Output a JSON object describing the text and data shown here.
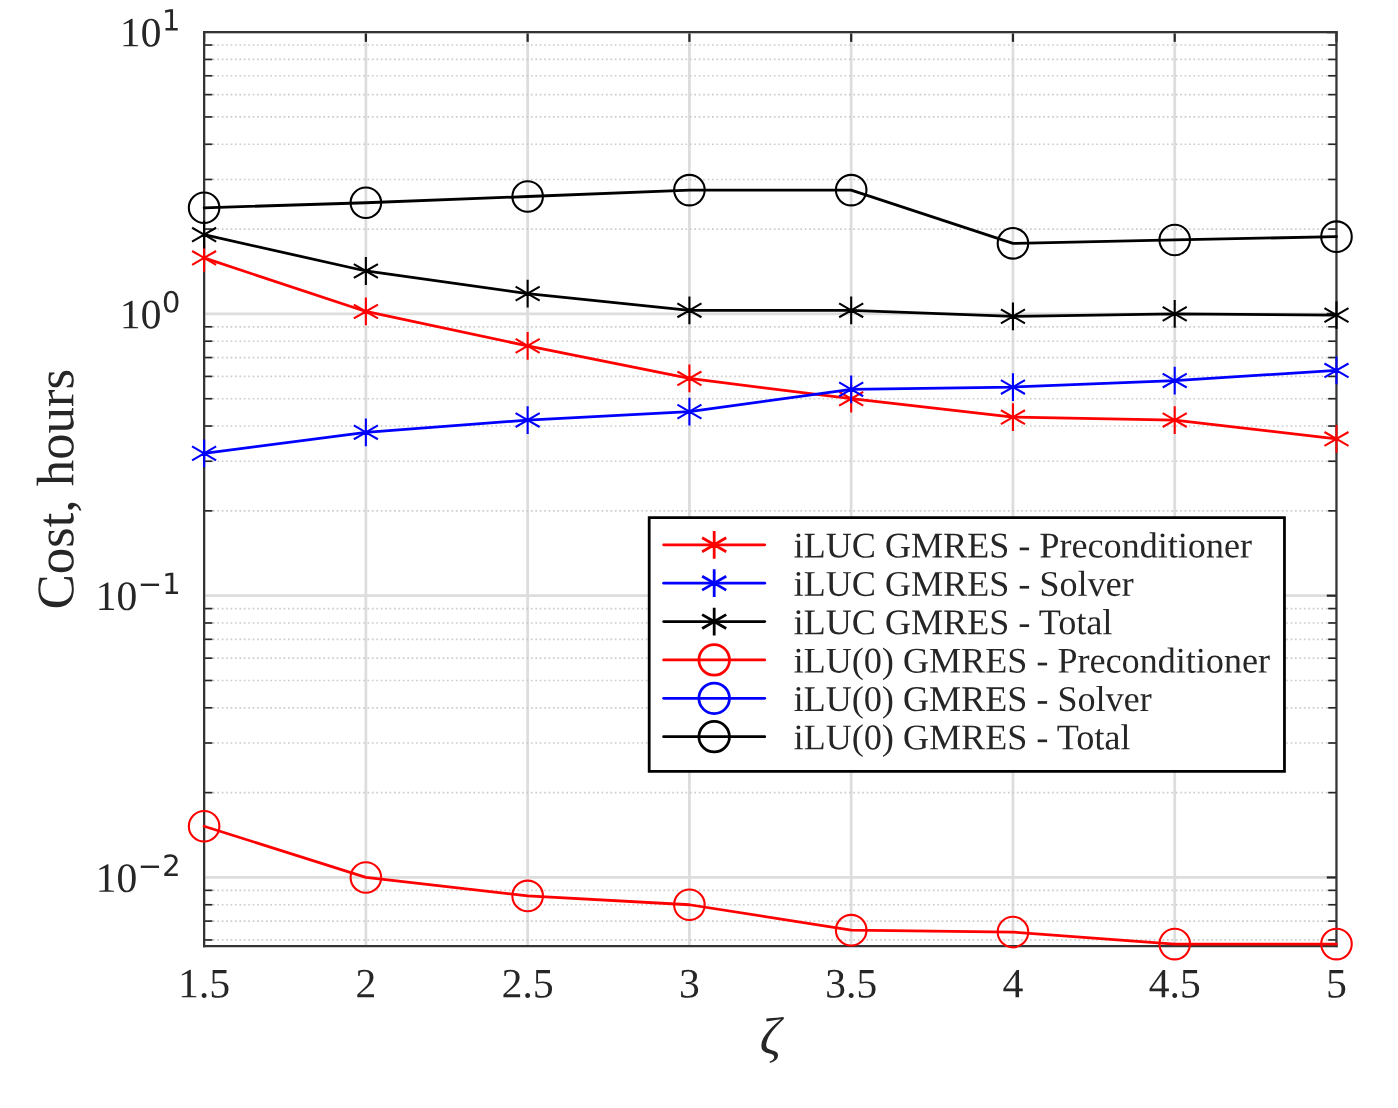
{
  "chart_data": {
    "type": "line",
    "xlabel": "ζ",
    "ylabel": "Cost, hours",
    "x": [
      1.5,
      2,
      2.5,
      3,
      3.5,
      4,
      4.5,
      5
    ],
    "xlim": [
      1.5,
      5
    ],
    "xticks": [
      1.5,
      2,
      2.5,
      3,
      3.5,
      4,
      4.5,
      5
    ],
    "ylim": [
      0.0057,
      10
    ],
    "yticks": [
      {
        "value": 0.01,
        "label": "10$^{−2}$"
      },
      {
        "value": 0.1,
        "label": "10$^{−1}$"
      },
      {
        "value": 1,
        "label": "10$^{0}$"
      },
      {
        "value": 10,
        "label": "10$^{1}$"
      }
    ],
    "log": "y",
    "grid": true,
    "legend": "right",
    "series": [
      {
        "name": "iLUC GMRES - Preconditioner",
        "color": "#ff0000",
        "marker": "cross",
        "values": [
          1.58,
          1.02,
          0.77,
          0.59,
          0.5,
          0.43,
          0.42,
          0.36
        ]
      },
      {
        "name": "iLUC GMRES - Solver",
        "color": "#0000ff",
        "marker": "cross",
        "values": [
          0.32,
          0.38,
          0.42,
          0.45,
          0.54,
          0.55,
          0.58,
          0.63
        ]
      },
      {
        "name": "iLUC GMRES - Total",
        "color": "#000000",
        "marker": "cross",
        "values": [
          1.91,
          1.42,
          1.18,
          1.03,
          1.03,
          0.98,
          1.0,
          0.99
        ]
      },
      {
        "name": "iLU(0) GMRES - Preconditioner",
        "color": "#ff0000",
        "marker": "circle",
        "values": [
          0.0152,
          0.01,
          0.0086,
          0.008,
          0.0065,
          0.0064,
          0.0058,
          0.0058
        ]
      },
      {
        "name": "iLU(0) GMRES - Solver",
        "color": "#0000ff",
        "marker": "circle",
        "values": [
          null,
          null,
          null,
          null,
          null,
          null,
          null,
          null
        ]
      },
      {
        "name": "iLU(0) GMRES - Total",
        "color": "#000000",
        "marker": "circle",
        "values": [
          2.38,
          2.48,
          2.61,
          2.75,
          2.75,
          1.78,
          1.83,
          1.88
        ]
      }
    ]
  }
}
